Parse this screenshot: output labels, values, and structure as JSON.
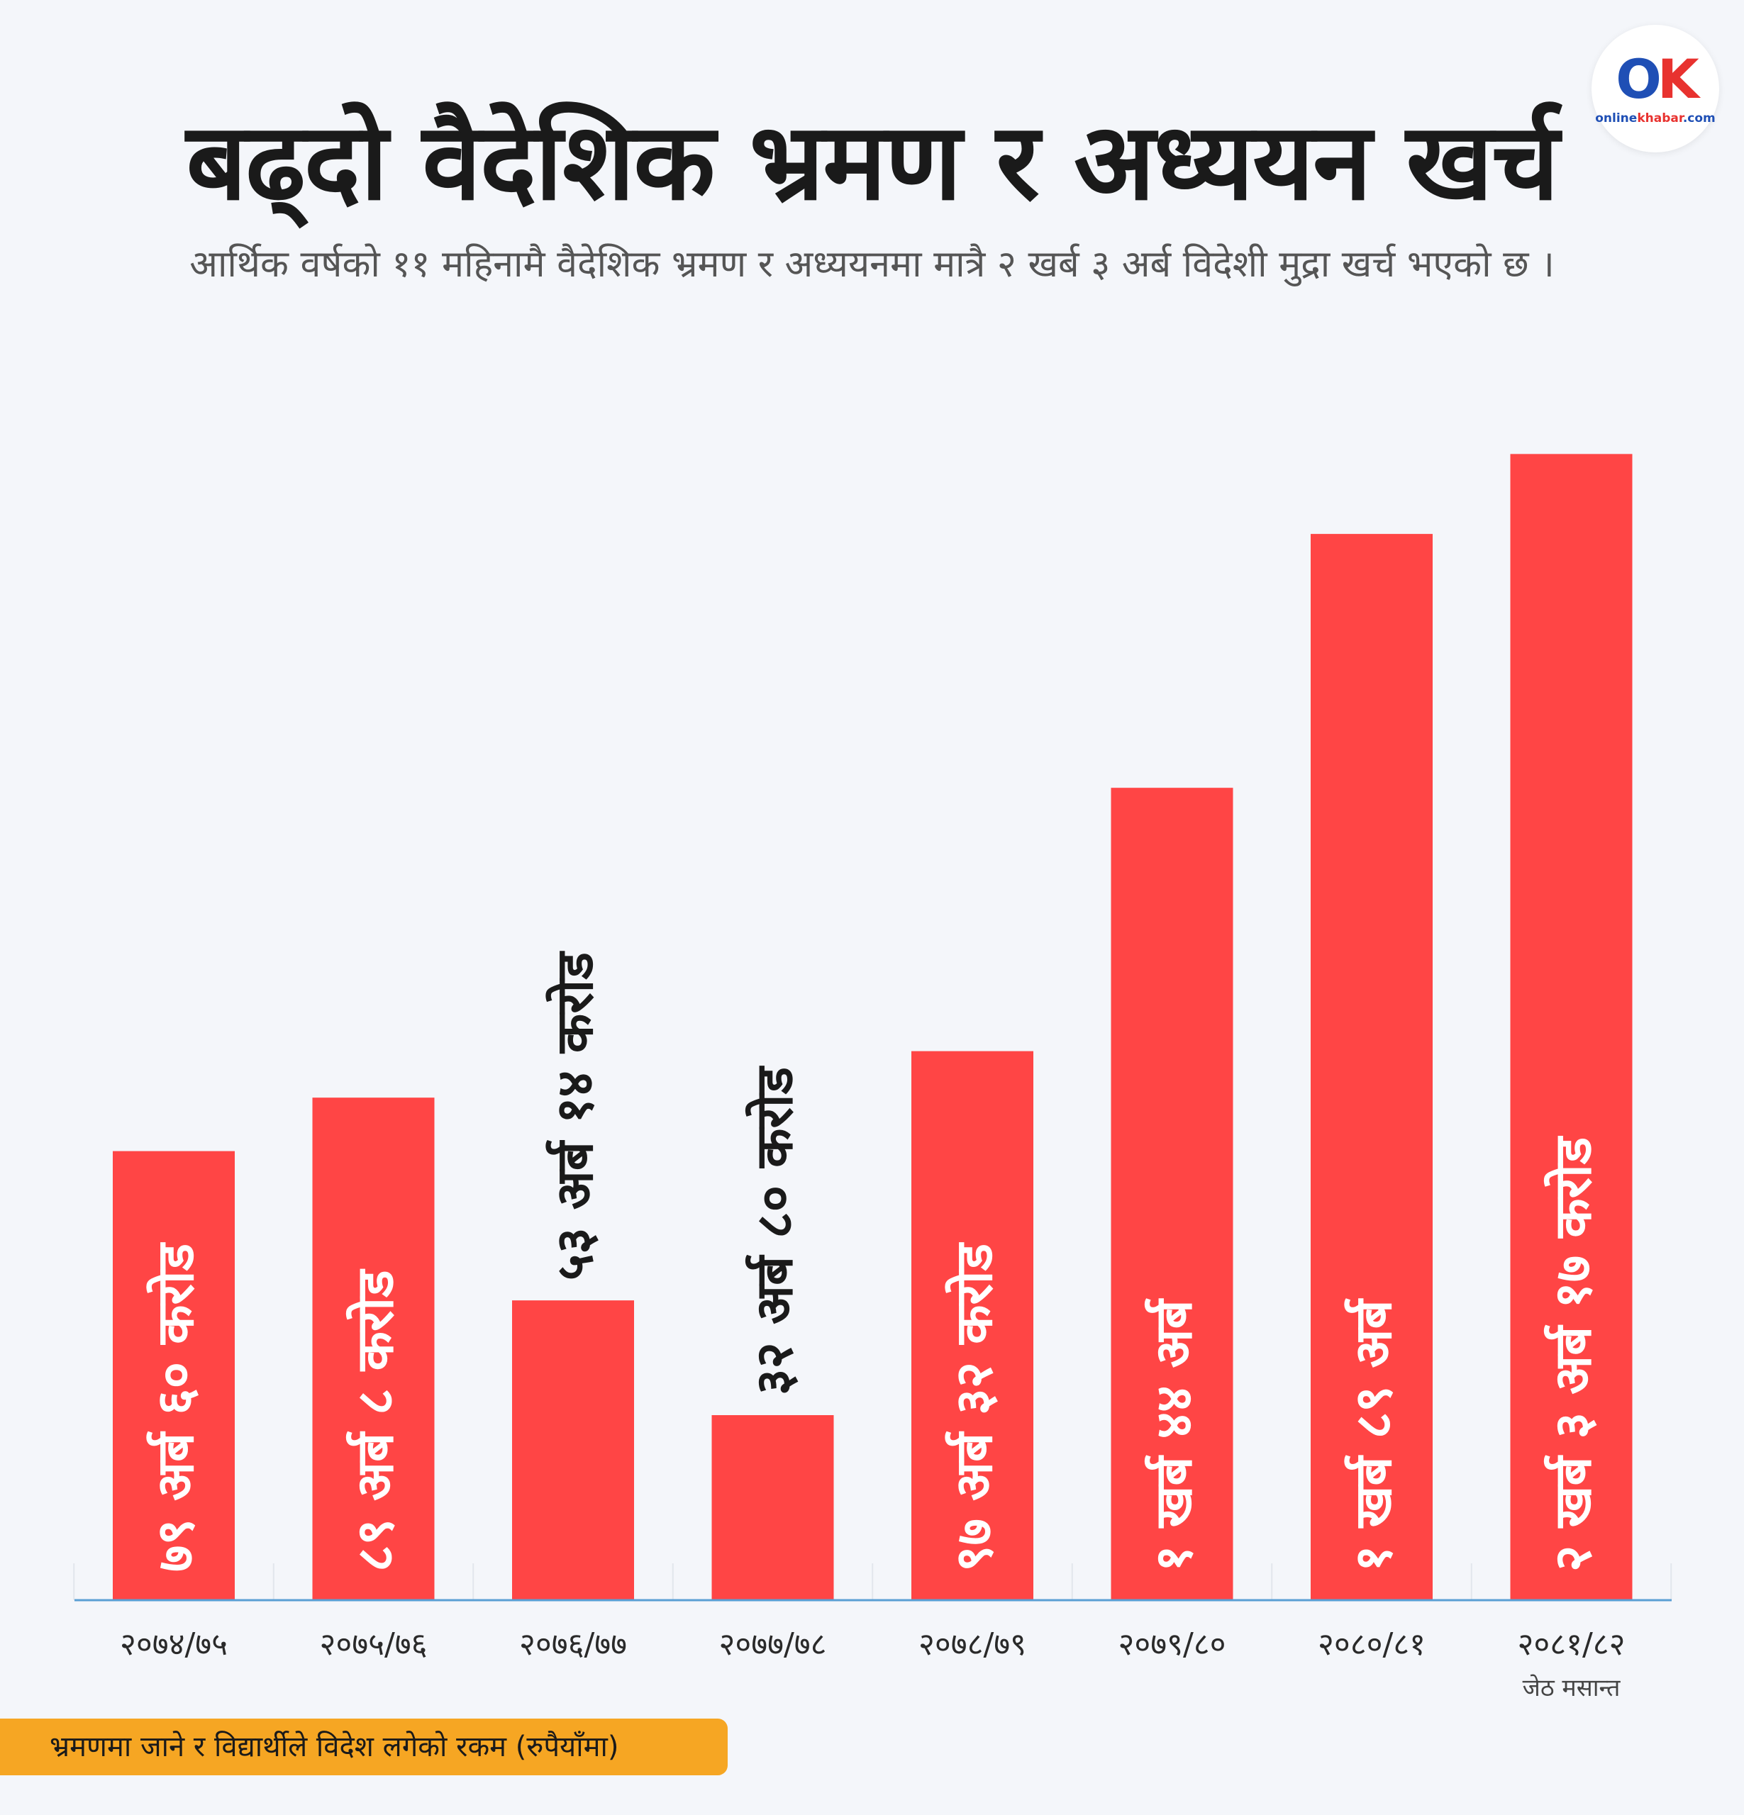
{
  "header": {
    "title": "बढ्दो वैदेशिक भ्रमण र अध्ययन खर्च",
    "subtitle": "आर्थिक वर्षको ११ महिनामै वैदेशिक भ्रमण र अध्ययनमा मात्रै २ खर्ब ३ अर्ब विदेशी मुद्रा खर्च भएको छ ।"
  },
  "logo": {
    "mark_o": "O",
    "mark_k": "K",
    "wordmark_a": "online",
    "wordmark_b": "khabar",
    "wordmark_c": ".com"
  },
  "note": "भ्रमणमा जाने र विद्यार्थीले विदेश लगेको रकम (रुपैयाँमा)",
  "colors": {
    "bar": "#ff4545",
    "baseline": "#5a9fd4",
    "note_bg": "#f6a623",
    "label_inside": "#ffffff",
    "label_outside": "#1a1a1a"
  },
  "chart_data": {
    "type": "bar",
    "title": "बढ्दो वैदेशिक भ्रमण र अध्ययन खर्च",
    "categories": [
      "२०७४/७५",
      "२०७५/७६",
      "२०७६/७७",
      "२०७७/७८",
      "२०७८/७९",
      "२०७९/८०",
      "२०८०/८१",
      "२०८१/८२"
    ],
    "category_notes": [
      "",
      "",
      "",
      "",
      "",
      "",
      "",
      "जेठ मसान्त"
    ],
    "series": [
      {
        "values": [
          79.6,
          89.08,
          53.14,
          32.8,
          97.32,
          144,
          189,
          203.17
        ],
        "labels": [
          "७९ अर्ब ६० करोड",
          "८९ अर्ब ८ करोड",
          "५३ अर्ब १४ करोड",
          "३२ अर्ब ८० करोड",
          "९७ अर्ब ३२ करोड",
          "१ खर्ब ४४ अर्ब",
          "१ खर्ब ८९ अर्ब",
          "२ खर्ब ३ अर्ब १७ करोड"
        ],
        "label_inside": [
          true,
          true,
          false,
          false,
          true,
          true,
          true,
          true
        ]
      }
    ],
    "unit": "अर्ब रुपैयाँ",
    "ylim": [
      0,
      210
    ],
    "grid": false,
    "legend": "none"
  }
}
